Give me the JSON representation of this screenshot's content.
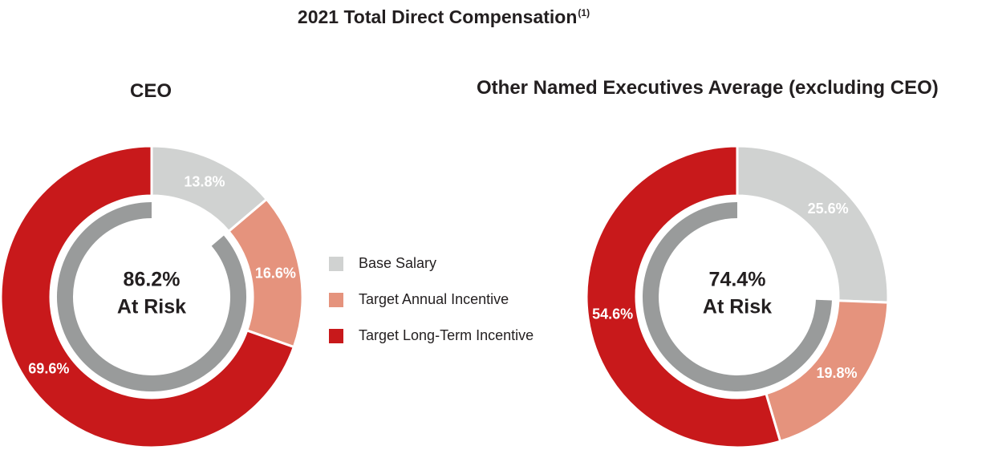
{
  "title": "2021 Total Direct Compensation",
  "title_note": "(1)",
  "colors": {
    "base": "#d0d2d1",
    "annual": "#e5937d",
    "longterm": "#c8191b",
    "ring": "#999b9b"
  },
  "legend": [
    {
      "label": "Base Salary",
      "color_key": "base"
    },
    {
      "label": "Target Annual Incentive",
      "color_key": "annual"
    },
    {
      "label": "Target Long-Term Incentive",
      "color_key": "longterm"
    }
  ],
  "chart_data": [
    {
      "type": "pie",
      "title": "CEO",
      "categories": [
        "Base Salary",
        "Target Annual Incentive",
        "Target Long-Term Incentive"
      ],
      "values": [
        13.8,
        16.6,
        69.6
      ],
      "labels": [
        "13.8%",
        "16.6%",
        "69.6%"
      ],
      "center_value": "86.2%",
      "center_label": "At Risk",
      "at_risk_fraction": 0.862
    },
    {
      "type": "pie",
      "title": "Other Named Executives Average (excluding CEO)",
      "categories": [
        "Base Salary",
        "Target Annual Incentive",
        "Target Long-Term Incentive"
      ],
      "values": [
        25.6,
        19.8,
        54.6
      ],
      "labels": [
        "25.6%",
        "19.8%",
        "54.6%"
      ],
      "center_value": "74.4%",
      "center_label": "At Risk",
      "at_risk_fraction": 0.744
    }
  ]
}
